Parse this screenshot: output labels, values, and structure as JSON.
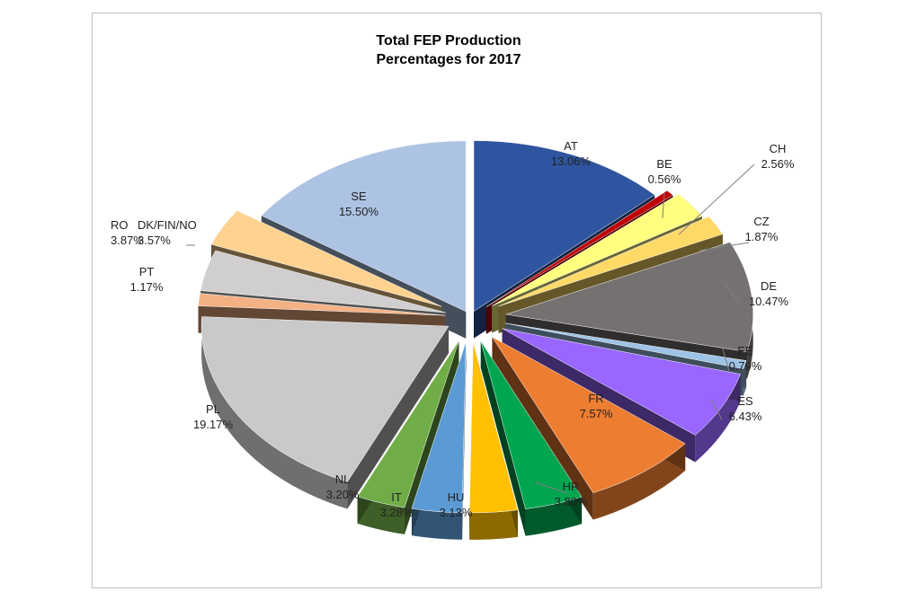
{
  "chart_data": {
    "type": "pie",
    "style": "3d-exploded",
    "title": "Total FEP Production Percentages for 2017",
    "title_lines": [
      "Total FEP Production",
      "Percentages for 2017"
    ],
    "legend": "none",
    "slices": [
      {
        "label": "AT",
        "value": 13.06,
        "value_label": "13.06%",
        "color": "#2f55a0"
      },
      {
        "label": "BE",
        "value": 0.56,
        "value_label": "0.56%",
        "color": "#c00000"
      },
      {
        "label": "CH",
        "value": 2.56,
        "value_label": "2.56%",
        "color": "#ffff7f"
      },
      {
        "label": "CZ",
        "value": 1.87,
        "value_label": "1.87%",
        "color": "#ffd966"
      },
      {
        "label": "DE",
        "value": 10.47,
        "value_label": "10.47%",
        "color": "#767171"
      },
      {
        "label": "EE",
        "value": 0.79,
        "value_label": "0.79%",
        "color": "#9dc3e6"
      },
      {
        "label": "ES",
        "value": 6.43,
        "value_label": "6.43%",
        "color": "#9966ff"
      },
      {
        "label": "FR",
        "value": 7.57,
        "value_label": "7.57%",
        "color": "#ed7d31"
      },
      {
        "label": "HR",
        "value": 3.8,
        "value_label": "3.80%",
        "color": "#00a550"
      },
      {
        "label": "HU",
        "value": 3.13,
        "value_label": "3.13%",
        "color": "#ffc000"
      },
      {
        "label": "IT",
        "value": 3.28,
        "value_label": "3.28%",
        "color": "#5b9bd5"
      },
      {
        "label": "NL",
        "value": 3.2,
        "value_label": "3.20%",
        "color": "#70ad47"
      },
      {
        "label": "PL",
        "value": 19.17,
        "value_label": "19.17%",
        "color": "#c9c9c9"
      },
      {
        "label": "PT",
        "value": 1.17,
        "value_label": "1.17%",
        "color": "#f4b183"
      },
      {
        "label": "RO",
        "value": 3.87,
        "value_label": "3.87%",
        "color": "#d0cece"
      },
      {
        "label": "DK/FIN/NO",
        "value": 3.57,
        "value_label": "3.57%",
        "color": "#ffd28f"
      },
      {
        "label": "SE",
        "value": 15.5,
        "value_label": "15.50%",
        "color": "#adc3e3"
      }
    ]
  }
}
